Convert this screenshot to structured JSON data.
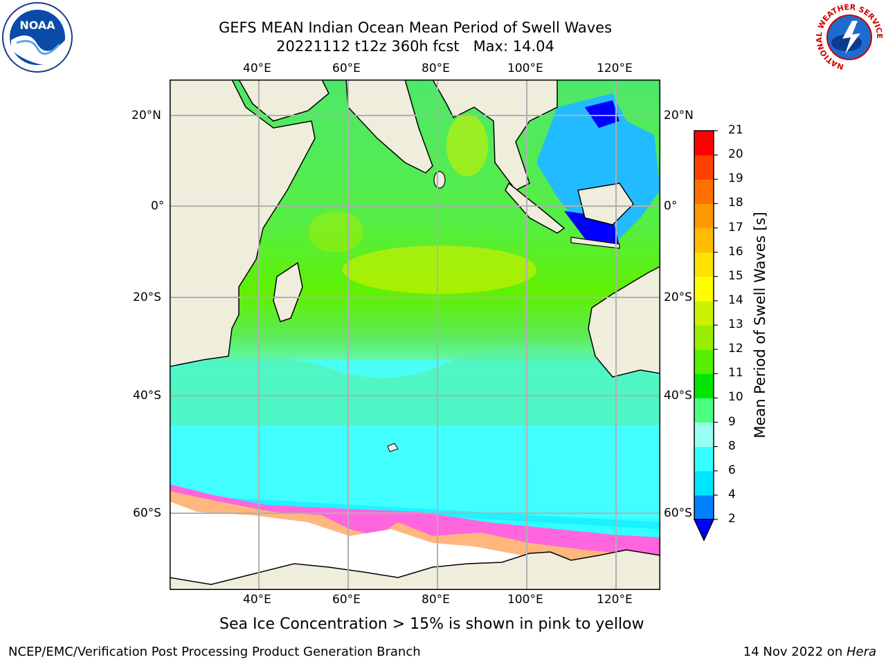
{
  "title": {
    "line1": "GEFS MEAN Indian Ocean Mean Period of Swell Waves",
    "line2": "20221112 t12z 360h fcst",
    "max_label": "Max: 14.04"
  },
  "axes": {
    "lon_ticks": [
      "40°E",
      "60°E",
      "80°E",
      "100°E",
      "120°E"
    ],
    "lat_ticks": [
      "20°N",
      "0°",
      "20°S",
      "40°S",
      "60°S"
    ]
  },
  "colorbar": {
    "label": "Mean Period of Swell Waves [s]",
    "ticks": [
      "2",
      "4",
      "6",
      "8",
      "9",
      "10",
      "11",
      "12",
      "13",
      "14",
      "15",
      "16",
      "17",
      "18",
      "19",
      "20",
      "21"
    ],
    "colors": [
      "#0000ff",
      "#0080ff",
      "#00e5ff",
      "#33ffff",
      "#99fff0",
      "#4dff80",
      "#00e600",
      "#55f000",
      "#99ee00",
      "#ccf000",
      "#ffff00",
      "#ffe000",
      "#ffbb00",
      "#ff9900",
      "#ff7000",
      "#ff4000",
      "#ff0000"
    ],
    "extend_min_color": "#0000ff"
  },
  "sea_ice_note": "Sea Ice Concentration > 15% is shown in pink to yellow",
  "footer": {
    "left": "NCEP/EMC/Verification Post Processing Product Generation Branch",
    "date": "14 Nov 2022 on ",
    "machine": "Hera"
  },
  "logos": {
    "noaa": "NOAA",
    "nws_ring": "NATIONAL WEATHER SERVICE"
  },
  "map": {
    "land_color": "#efeddb",
    "ice_colors": [
      "#ff66dd",
      "#ffcc66"
    ]
  }
}
